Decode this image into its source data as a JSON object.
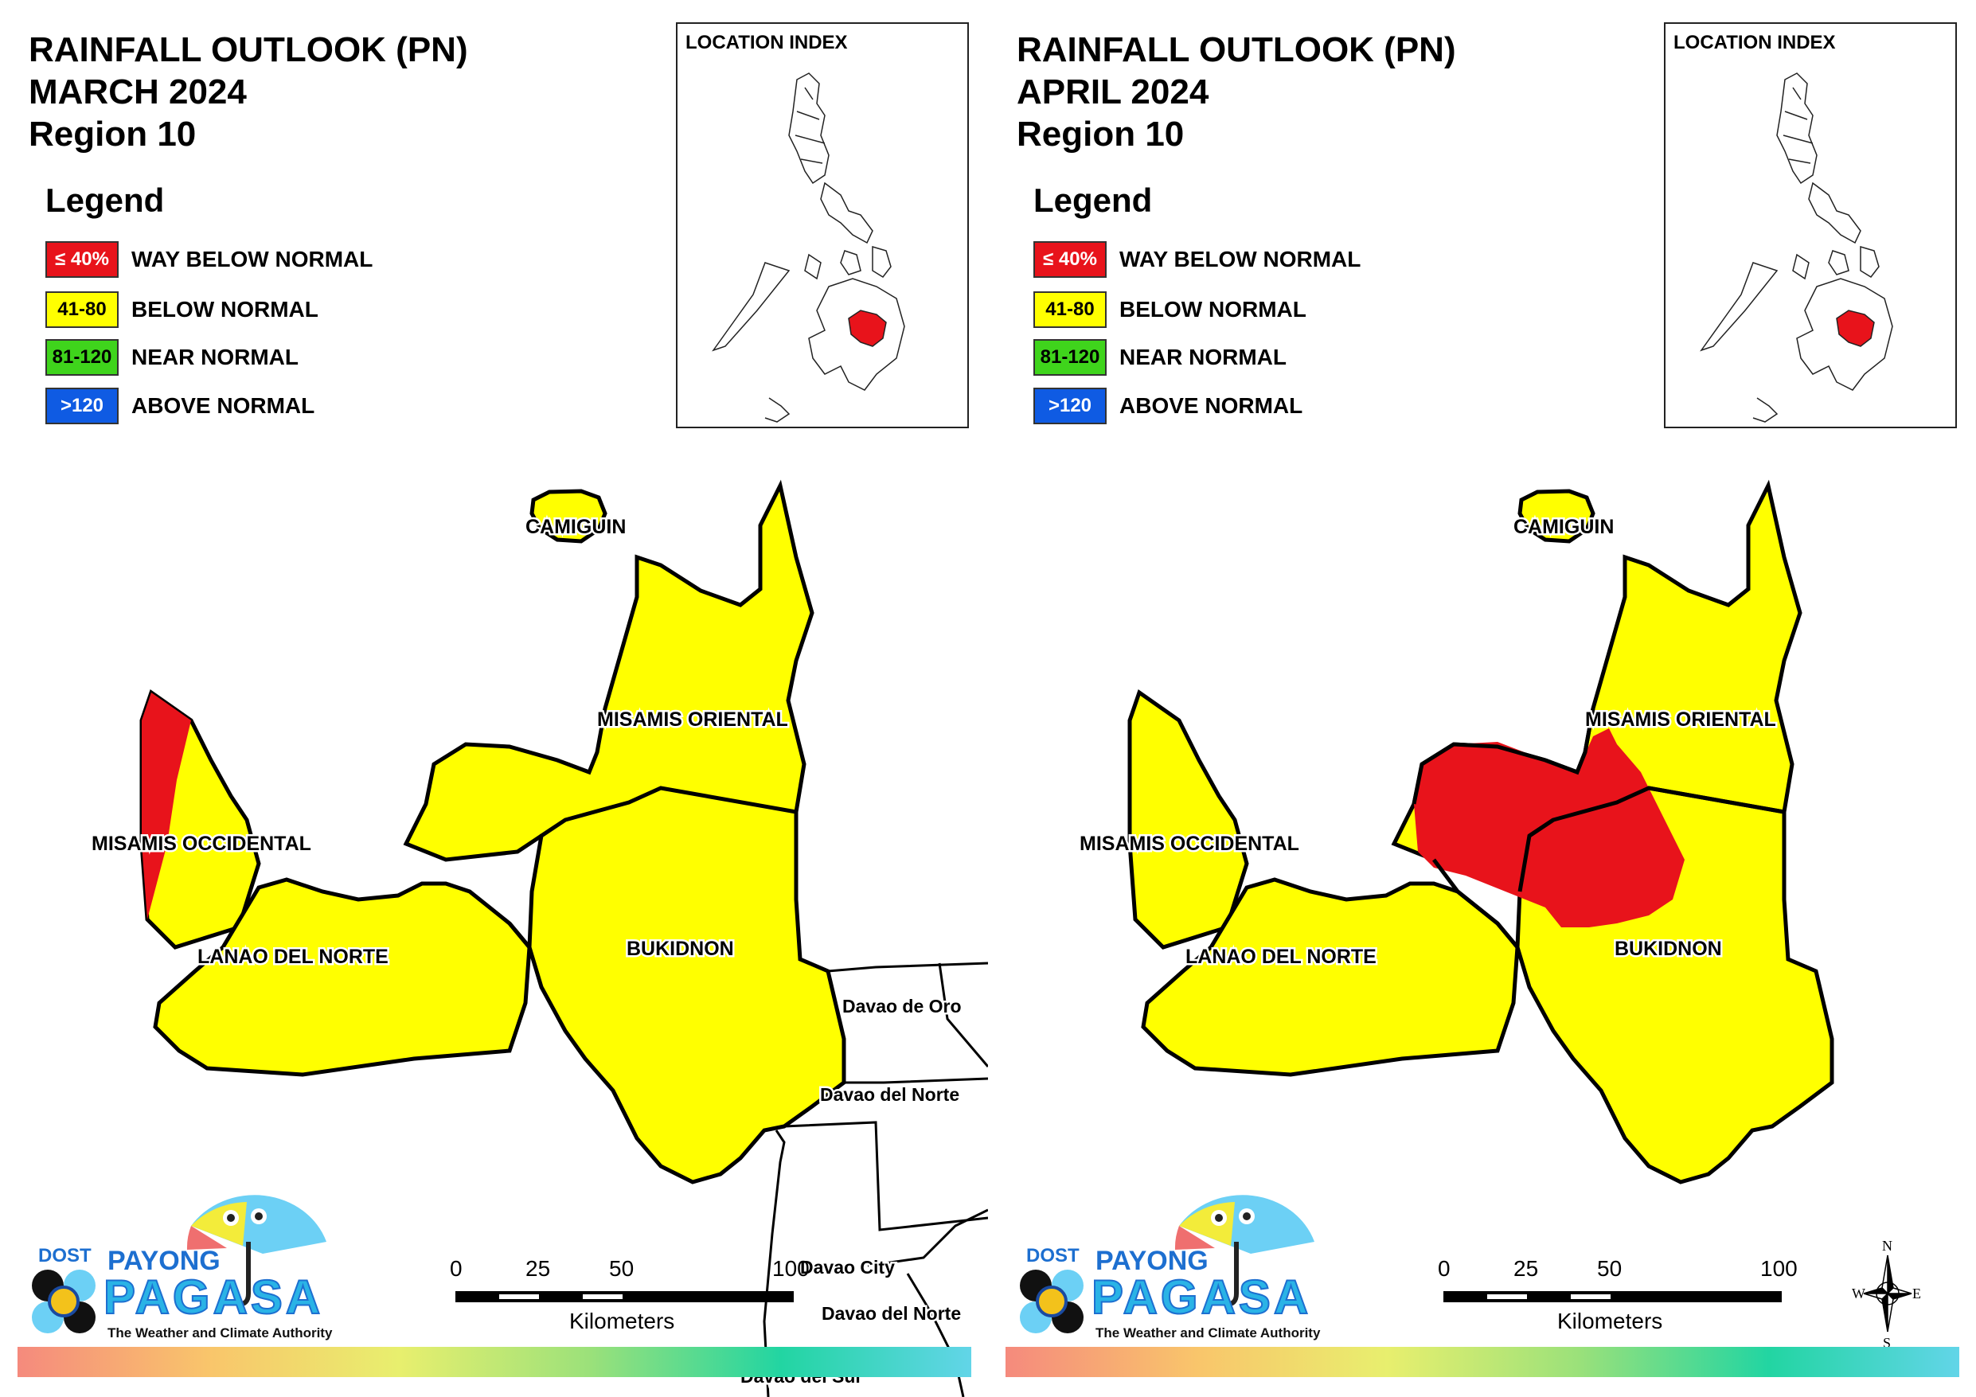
{
  "panels": [
    {
      "title_line1": "RAINFALL OUTLOOK (PN)",
      "title_line2": "MARCH 2024",
      "title_line3": "Region 10",
      "legend_title": "Legend",
      "location_index_title": "LOCATION INDEX",
      "map_labels": {
        "camiguin": "CAMIGUIN",
        "misamis_oriental": "MISAMIS ORIENTAL",
        "misamis_occidental": "MISAMIS OCCIDENTAL",
        "lanao_del_norte": "LANAO DEL NORTE",
        "bukidnon": "BUKIDNON",
        "davao_de_oro": "Davao de Oro",
        "davao_del_norte": "Davao del Norte",
        "davao_city": "Davao City",
        "davao_del_norte_2": "Davao del Norte",
        "davao_del_sur": "Davao del Sur"
      }
    },
    {
      "title_line1": "RAINFALL OUTLOOK (PN)",
      "title_line2": "APRIL 2024",
      "title_line3": "Region 10",
      "legend_title": "Legend",
      "location_index_title": "LOCATION INDEX",
      "map_labels": {
        "camiguin": "CAMIGUIN",
        "misamis_oriental": "MISAMIS ORIENTAL",
        "misamis_occidental": "MISAMIS OCCIDENTAL",
        "lanao_del_norte": "LANAO DEL NORTE",
        "bukidnon": "BUKIDNON"
      }
    }
  ],
  "legend": [
    {
      "range": "≤ 40%",
      "label": "WAY BELOW NORMAL",
      "color": "#e8131b",
      "text_color": "#ffffff"
    },
    {
      "range": "41-80",
      "label": "BELOW NORMAL",
      "color": "#ffff00",
      "text_color": "#000000"
    },
    {
      "range": "81-120",
      "label": "NEAR NORMAL",
      "color": "#3fd41c",
      "text_color": "#000000"
    },
    {
      "range": ">120",
      "label": "ABOVE NORMAL",
      "color": "#0f5be3",
      "text_color": "#ffffff"
    }
  ],
  "scale": {
    "t0": "0",
    "t1": "25",
    "t2": "50",
    "t3": "100",
    "unit": "Kilometers"
  },
  "compass": {
    "n": "N",
    "s": "S",
    "e": "E",
    "w": "W"
  },
  "branding": {
    "dost": "DOST",
    "payong": "PAYONG",
    "pagasa": "PAGASA",
    "tagline": "The Weather and Climate Authority"
  },
  "colors": {
    "way_below": "#e8131b",
    "below": "#ffff00",
    "outline": "#000000"
  }
}
